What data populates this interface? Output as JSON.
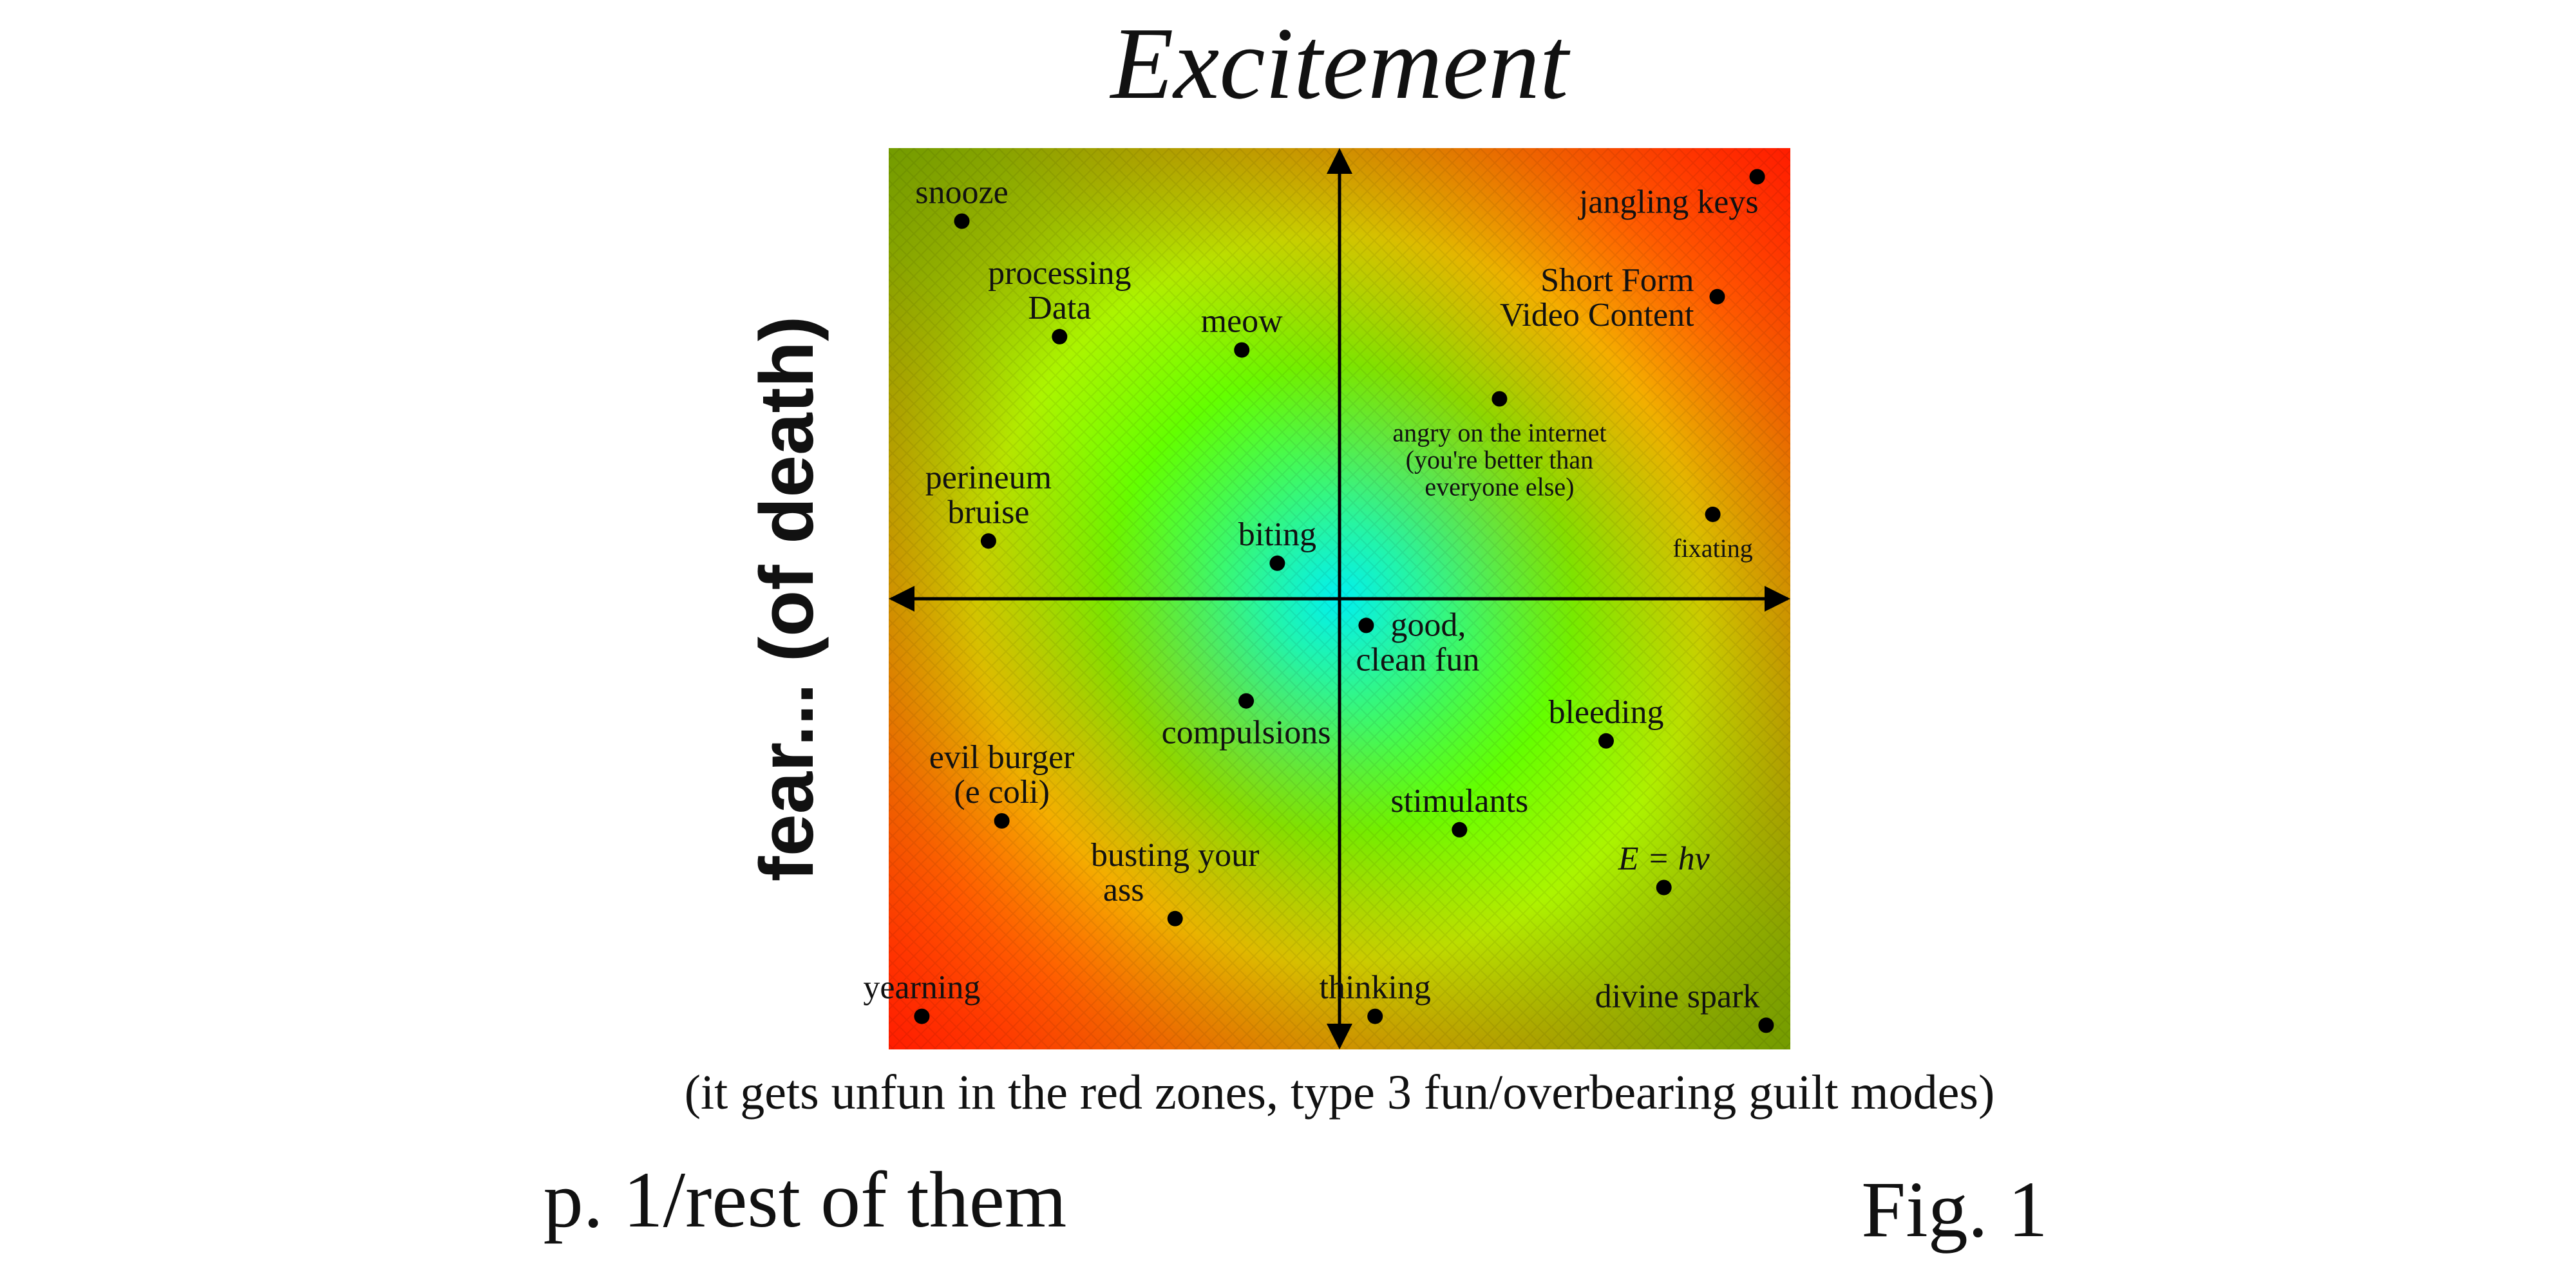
{
  "title": "Excitement",
  "ylabel": "fear... (of death)",
  "caption": "(it gets unfun in the red zones, type 3 fun/overbearing guilt modes)",
  "footer_left": "p. 1/rest of them",
  "footer_right": "Fig. 1",
  "colors": {
    "center": "#00f0f0",
    "mid": "#76ff00",
    "yellow": "#f0f000",
    "orange": "#ff8a00",
    "red": "#ff1a00",
    "axis": "#000000",
    "point": "#000000"
  },
  "points": [
    {
      "id": "snooze",
      "lines": [
        "snooze"
      ],
      "x": -0.85,
      "y": 0.85,
      "anchor": "top"
    },
    {
      "id": "processing-data",
      "lines": [
        "processing",
        "Data"
      ],
      "x": -0.63,
      "y": 0.59,
      "anchor": "top"
    },
    {
      "id": "meow",
      "lines": [
        "meow"
      ],
      "x": -0.22,
      "y": 0.56,
      "anchor": "top"
    },
    {
      "id": "perineum-bruise",
      "lines": [
        "perineum",
        "bruise"
      ],
      "x": -0.79,
      "y": 0.13,
      "anchor": "top"
    },
    {
      "id": "biting",
      "lines": [
        "biting"
      ],
      "x": -0.14,
      "y": 0.08,
      "anchor": "top"
    },
    {
      "id": "jangling-keys",
      "lines": [
        "jangling keys"
      ],
      "x": 0.94,
      "y": 0.95,
      "anchor": "below-left"
    },
    {
      "id": "short-form-video",
      "lines": [
        "Short Form",
        "Video Content"
      ],
      "x": 0.85,
      "y": 0.68,
      "anchor": "left"
    },
    {
      "id": "angry-internet",
      "lines": [
        "angry on the internet",
        "(you're better than",
        "everyone else)"
      ],
      "x": 0.36,
      "y": 0.45,
      "anchor": "below",
      "small": true
    },
    {
      "id": "fixating",
      "lines": [
        "fixating"
      ],
      "x": 0.84,
      "y": 0.19,
      "anchor": "below",
      "small": true
    },
    {
      "id": "good-clean-fun",
      "lines": [
        "good,",
        "clean fun"
      ],
      "x": 0.06,
      "y": -0.06,
      "anchor": "right"
    },
    {
      "id": "compulsions",
      "lines": [
        "compulsions"
      ],
      "x": -0.21,
      "y": -0.23,
      "anchor": "below"
    },
    {
      "id": "bleeding",
      "lines": [
        "bleeding"
      ],
      "x": 0.6,
      "y": -0.32,
      "anchor": "top"
    },
    {
      "id": "evil-burger",
      "lines": [
        "evil burger",
        "(e coli)"
      ],
      "x": -0.76,
      "y": -0.5,
      "anchor": "top"
    },
    {
      "id": "stimulants",
      "lines": [
        "stimulants"
      ],
      "x": 0.27,
      "y": -0.52,
      "anchor": "top"
    },
    {
      "id": "e-h-nu",
      "lines": [
        "E = hν"
      ],
      "x": 0.73,
      "y": -0.65,
      "anchor": "top",
      "italic": true
    },
    {
      "id": "busting-your-ass",
      "lines": [
        "busting your",
        "ass"
      ],
      "x": -0.37,
      "y": -0.72,
      "anchor": "top-split"
    },
    {
      "id": "yearning",
      "lines": [
        "yearning"
      ],
      "x": -0.94,
      "y": -0.94,
      "anchor": "top"
    },
    {
      "id": "thinking",
      "lines": [
        "thinking"
      ],
      "x": 0.08,
      "y": -0.94,
      "anchor": "top"
    },
    {
      "id": "divine-spark",
      "lines": [
        "divine spark"
      ],
      "x": 0.96,
      "y": -0.96,
      "anchor": "top-left"
    }
  ]
}
